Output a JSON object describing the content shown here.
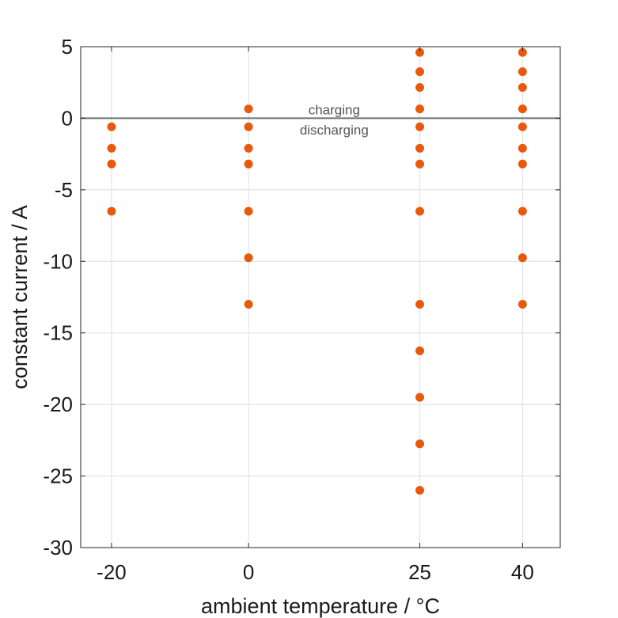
{
  "chart_data": {
    "type": "scatter",
    "title": "",
    "xlabel": "ambient temperature / °C",
    "ylabel": "constant current / A",
    "x_ticks": [
      -20,
      0,
      25,
      40
    ],
    "x_tick_labels": [
      "-20",
      "0",
      "25",
      "40"
    ],
    "xlim": [
      -24.5,
      45.5
    ],
    "y_ticks": [
      -30,
      -25,
      -20,
      -15,
      -10,
      -5,
      0,
      5
    ],
    "y_tick_labels": [
      "-30",
      "-25",
      "-20",
      "-15",
      "-10",
      "-5",
      "0",
      "5"
    ],
    "ylim": [
      -30,
      5
    ],
    "grid": true,
    "reference_line": {
      "y": 0,
      "color": "#707070"
    },
    "annotations": [
      {
        "text": "charging",
        "x": 12.5,
        "y": 0.6
      },
      {
        "text": "discharging",
        "x": 12.5,
        "y": -0.8
      }
    ],
    "marker_color": "#e8590c",
    "points": [
      {
        "x": -20,
        "y": -0.6
      },
      {
        "x": -20,
        "y": -2.1
      },
      {
        "x": -20,
        "y": -3.2
      },
      {
        "x": -20,
        "y": -6.5
      },
      {
        "x": 0,
        "y": 0.65
      },
      {
        "x": 0,
        "y": -0.6
      },
      {
        "x": 0,
        "y": -2.1
      },
      {
        "x": 0,
        "y": -3.2
      },
      {
        "x": 0,
        "y": -6.5
      },
      {
        "x": 0,
        "y": -9.75
      },
      {
        "x": 0,
        "y": -13.0
      },
      {
        "x": 25,
        "y": 4.6
      },
      {
        "x": 25,
        "y": 3.25
      },
      {
        "x": 25,
        "y": 2.15
      },
      {
        "x": 25,
        "y": 0.65
      },
      {
        "x": 25,
        "y": -0.6
      },
      {
        "x": 25,
        "y": -2.1
      },
      {
        "x": 25,
        "y": -3.2
      },
      {
        "x": 25,
        "y": -6.5
      },
      {
        "x": 25,
        "y": -13.0
      },
      {
        "x": 25,
        "y": -16.25
      },
      {
        "x": 25,
        "y": -19.5
      },
      {
        "x": 25,
        "y": -22.75
      },
      {
        "x": 25,
        "y": -26.0
      },
      {
        "x": 40,
        "y": 4.6
      },
      {
        "x": 40,
        "y": 3.25
      },
      {
        "x": 40,
        "y": 2.15
      },
      {
        "x": 40,
        "y": 0.65
      },
      {
        "x": 40,
        "y": -0.6
      },
      {
        "x": 40,
        "y": -2.1
      },
      {
        "x": 40,
        "y": -3.2
      },
      {
        "x": 40,
        "y": -6.5
      },
      {
        "x": 40,
        "y": -9.75
      },
      {
        "x": 40,
        "y": -13.0
      }
    ]
  }
}
